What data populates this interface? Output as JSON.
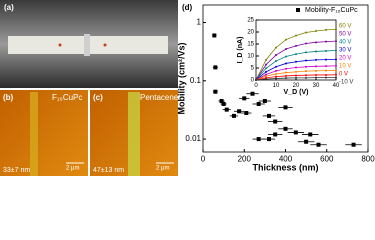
{
  "images": {
    "a": {
      "label": "(a)"
    },
    "b": {
      "label": "(b)",
      "material": "F₁₆CuPc",
      "scale": "2 μm",
      "thickness": "33±7 nm"
    },
    "c": {
      "label": "(c)",
      "material": "Pentacene",
      "scale": "2 μm",
      "thickness": "47±13 nm"
    }
  },
  "panel_label": "(d)",
  "chart_data": [
    {
      "type": "scatter",
      "x_label": "Thickness (nm)",
      "y_label": "Mobility (cm²/Vs)",
      "log_y": true,
      "xlim": [
        0,
        800
      ],
      "xticks": [
        0,
        200,
        400,
        600,
        800
      ],
      "ylim": [
        0.006,
        2
      ],
      "yticks": [
        0.01,
        0.1,
        1
      ],
      "series": [
        {
          "name": "Mobility-F₁₆CuPc",
          "color": "#000000",
          "x": [
            55,
            60,
            60,
            90,
            100,
            115,
            150,
            175,
            200,
            210,
            240,
            270,
            300,
            320,
            350,
            400,
            270,
            320,
            350,
            400,
            450,
            500,
            520,
            560,
            730
          ],
          "values": [
            0.6,
            0.17,
            0.065,
            0.045,
            0.04,
            0.032,
            0.025,
            0.03,
            0.05,
            0.028,
            0.06,
            0.04,
            0.045,
            0.025,
            0.02,
            0.035,
            0.01,
            0.01,
            0.012,
            0.015,
            0.013,
            0.009,
            0.012,
            0.008,
            0.008
          ],
          "x_errors": [
            10,
            12,
            12,
            15,
            15,
            20,
            20,
            25,
            25,
            25,
            30,
            30,
            30,
            30,
            35,
            35,
            30,
            30,
            35,
            35,
            40,
            40,
            40,
            40,
            40
          ]
        }
      ],
      "legend": "upper right"
    },
    {
      "type": "line",
      "x_label": "V_D (V)",
      "y_label": "I_D (nA)",
      "xlim": [
        0,
        40
      ],
      "xticks": [
        0,
        10,
        20,
        30,
        40
      ],
      "ylim": [
        0,
        25
      ],
      "yticks": [
        0,
        5,
        10,
        15,
        20,
        25
      ],
      "x": [
        0,
        5,
        10,
        15,
        20,
        25,
        30,
        35,
        40
      ],
      "series": [
        {
          "name": "60 V",
          "color": "#808000",
          "values": [
            0,
            8.4,
            13.5,
            16.8,
            18.5,
            19.8,
            20.4,
            20.9,
            21.1
          ]
        },
        {
          "name": "50 V",
          "color": "#8000a0",
          "values": [
            0,
            6.4,
            10.4,
            12.9,
            14.2,
            15.2,
            15.7,
            16,
            16.2
          ]
        },
        {
          "name": "40 V",
          "color": "#008080",
          "values": [
            0,
            4.9,
            7.9,
            9.8,
            10.8,
            11.5,
            11.9,
            12.1,
            12.3
          ]
        },
        {
          "name": "30 V",
          "color": "#0000cc",
          "values": [
            0,
            3.4,
            5.5,
            6.9,
            7.6,
            8.1,
            8.4,
            8.5,
            8.6
          ]
        },
        {
          "name": "20 V",
          "color": "#cc00cc",
          "values": [
            0,
            2.3,
            3.8,
            4.7,
            5.2,
            5.5,
            5.7,
            5.8,
            5.9
          ]
        },
        {
          "name": "10 V",
          "color": "#ff8000",
          "values": [
            0,
            1.6,
            2.5,
            3.1,
            3.4,
            3.7,
            3.8,
            3.9,
            3.9
          ]
        },
        {
          "name": "0 V",
          "color": "#ff0000",
          "values": [
            0,
            0.9,
            1.4,
            1.7,
            1.9,
            2,
            2.1,
            2.1,
            2.2
          ]
        },
        {
          "name": "-10 V",
          "color": "#333333",
          "values": [
            0,
            0.4,
            0.6,
            0.8,
            0.9,
            0.9,
            1,
            1,
            1
          ]
        }
      ]
    }
  ]
}
